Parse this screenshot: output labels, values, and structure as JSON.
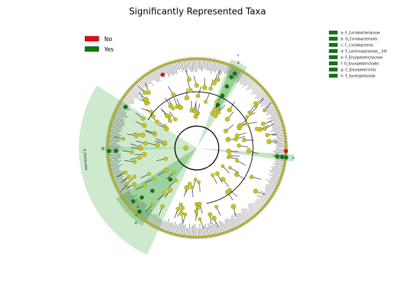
{
  "title": "Significantly Represented Taxa",
  "legend": [
    {
      "label": "No",
      "color": "#ff0000"
    },
    {
      "label": "Yes",
      "color": "#008000"
    }
  ],
  "clades": [
    {
      "key": "a",
      "name": "F_Coriobacteriaceae"
    },
    {
      "key": "b",
      "name": "O_Coriobacteriales"
    },
    {
      "key": "c",
      "name": "C_Coriobacteriia"
    },
    {
      "key": "d",
      "name": "F_Lachnospiraceae__XIV"
    },
    {
      "key": "e",
      "name": "F_Erysipelotrichaceae"
    },
    {
      "key": "f",
      "name": "O_Erysipelotrichales"
    },
    {
      "key": "g",
      "name": "C_Erysipelotrichia"
    },
    {
      "key": "h",
      "name": "F_Synergistaceae"
    }
  ],
  "big_sector_label": "P_Firmicutes",
  "colors": {
    "node_default": "#c8c41a",
    "node_significant": "#0f7a0f",
    "node_red": "#ee1111",
    "sector_light": "#a6d9a6",
    "sector_mid": "#5fb85f",
    "sector_dark": "#2e8b2e"
  }
}
